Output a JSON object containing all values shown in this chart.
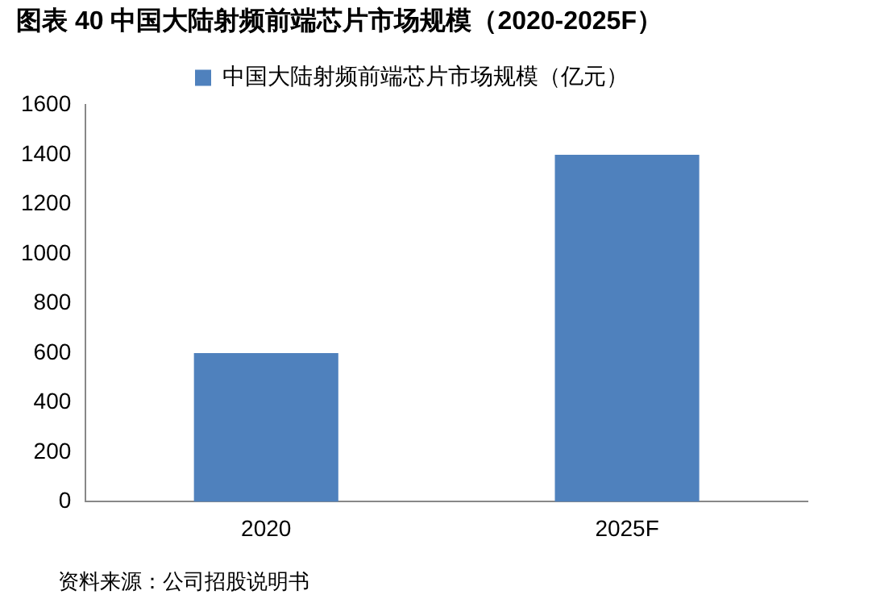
{
  "chart_data": {
    "type": "bar",
    "title": "图表 40 中国大陆射频前端芯片市场规模（2020-2025F）",
    "categories": [
      "2020",
      "2025F"
    ],
    "series": [
      {
        "name": "中国大陆射频前端芯片市场规模（亿元）",
        "color": "#4f81bd",
        "values": [
          600,
          1400
        ]
      }
    ],
    "ylim": [
      0,
      1600
    ],
    "yticks": [
      0,
      200,
      400,
      600,
      800,
      1000,
      1200,
      1400,
      1600
    ],
    "grid": false,
    "legend": "top",
    "annotations": [
      "资料来源：公司招股说明书"
    ]
  }
}
